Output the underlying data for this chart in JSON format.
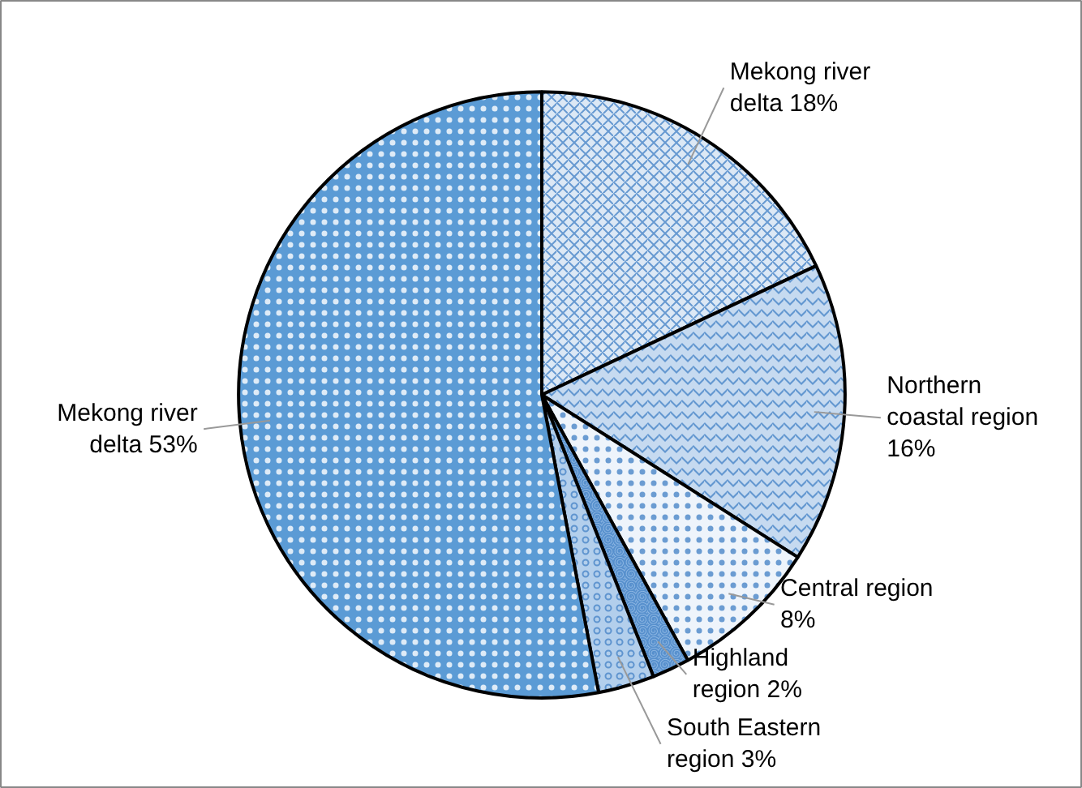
{
  "chart_data": {
    "type": "pie",
    "categories": [
      "Mekong river delta",
      "Northern coastal region",
      "Central region",
      "Highland region",
      "South Eastern region",
      "Mekong river delta"
    ],
    "values": [
      18,
      16,
      8,
      2,
      3,
      53
    ],
    "value_labels": [
      "18%",
      "16%",
      "8%",
      "2%",
      "3%",
      "53%"
    ],
    "colors": [
      "#dce8f5",
      "#c6daf0",
      "#eef4fb",
      "#8db7e3",
      "#b3cfec",
      "#5b9bd5"
    ]
  }
}
